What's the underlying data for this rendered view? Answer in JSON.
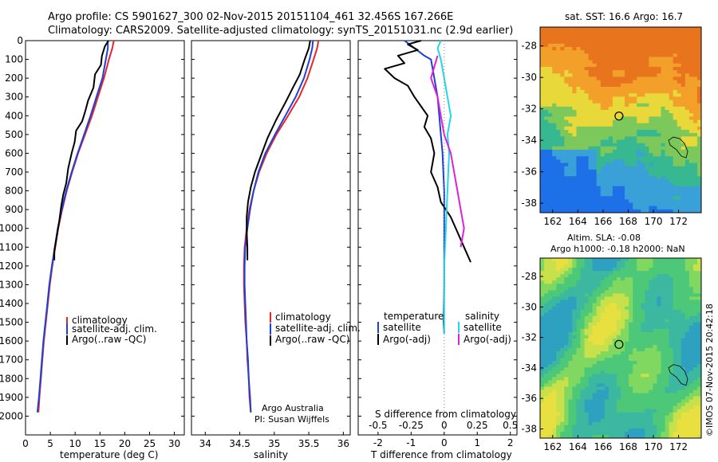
{
  "header": {
    "line1": "Argo profile: CS 5901627_300 02-Nov-2015 20151104_461 32.456S 167.266E",
    "line2": "Climatology: CARS2009. Satellite-adjusted climatology: synTS_20151031.nc (2.9d earlier)"
  },
  "colors": {
    "climatology": "#e8262a",
    "satellite": "#1e3fd8",
    "argo": "#000000",
    "sat_salinity": "#20d8e8",
    "argo_adj_salinity": "#e020d8",
    "zero_line": "#888888"
  },
  "chart_data": [
    {
      "id": "temperature",
      "type": "line",
      "xlabel": "temperature (deg C)",
      "ylabel": "",
      "xlim": [
        0,
        32
      ],
      "ylim": [
        2100,
        0
      ],
      "xticks": [
        0,
        5,
        10,
        15,
        20,
        25,
        30
      ],
      "yticks": [
        0,
        100,
        200,
        300,
        400,
        500,
        600,
        700,
        800,
        900,
        1000,
        1100,
        1200,
        1300,
        1400,
        1500,
        1600,
        1700,
        1800,
        1900,
        2000
      ],
      "legend": [
        "climatology",
        "satellite-adj. clim.",
        "Argo(..raw -QC)"
      ],
      "series": [
        {
          "name": "climatology",
          "color_key": "climatology",
          "points": [
            [
              17.8,
              0
            ],
            [
              17.5,
              40
            ],
            [
              16.8,
              100
            ],
            [
              15.8,
              200
            ],
            [
              14.6,
              300
            ],
            [
              13.4,
              400
            ],
            [
              12.0,
              500
            ],
            [
              10.6,
              600
            ],
            [
              9.4,
              700
            ],
            [
              8.3,
              800
            ],
            [
              7.4,
              900
            ],
            [
              6.6,
              1000
            ],
            [
              6.0,
              1100
            ],
            [
              5.4,
              1200
            ],
            [
              4.9,
              1300
            ],
            [
              4.5,
              1400
            ],
            [
              4.1,
              1500
            ],
            [
              3.7,
              1600
            ],
            [
              3.4,
              1700
            ],
            [
              3.1,
              1800
            ],
            [
              2.8,
              1900
            ],
            [
              2.6,
              1980
            ]
          ]
        },
        {
          "name": "satellite-adj. clim.",
          "color_key": "satellite",
          "points": [
            [
              16.6,
              0
            ],
            [
              16.6,
              40
            ],
            [
              16.2,
              100
            ],
            [
              15.5,
              200
            ],
            [
              14.3,
              300
            ],
            [
              13.1,
              400
            ],
            [
              11.8,
              500
            ],
            [
              10.5,
              600
            ],
            [
              9.3,
              700
            ],
            [
              8.2,
              800
            ],
            [
              7.3,
              900
            ],
            [
              6.5,
              1000
            ],
            [
              5.9,
              1100
            ],
            [
              5.3,
              1200
            ],
            [
              4.8,
              1300
            ],
            [
              4.4,
              1400
            ],
            [
              4.0,
              1500
            ],
            [
              3.6,
              1600
            ],
            [
              3.3,
              1700
            ],
            [
              3.0,
              1800
            ],
            [
              2.7,
              1900
            ],
            [
              2.4,
              1980
            ]
          ]
        },
        {
          "name": "Argo(..raw -QC)",
          "color_key": "argo",
          "points": [
            [
              16.7,
              0
            ],
            [
              16.0,
              30
            ],
            [
              15.4,
              80
            ],
            [
              15.2,
              130
            ],
            [
              14.0,
              180
            ],
            [
              13.7,
              250
            ],
            [
              12.6,
              320
            ],
            [
              12.0,
              380
            ],
            [
              11.4,
              430
            ],
            [
              10.2,
              480
            ],
            [
              9.9,
              540
            ],
            [
              9.3,
              600
            ],
            [
              8.6,
              680
            ],
            [
              8.2,
              760
            ],
            [
              7.6,
              820
            ],
            [
              7.2,
              880
            ],
            [
              6.8,
              960
            ],
            [
              6.3,
              1040
            ],
            [
              5.8,
              1120
            ],
            [
              5.8,
              1170
            ]
          ]
        }
      ]
    },
    {
      "id": "salinity",
      "type": "line",
      "xlabel": "salinity",
      "ylabel": "",
      "xlim": [
        33.8,
        36.1
      ],
      "ylim": [
        2100,
        0
      ],
      "xticks": [
        34,
        34.5,
        35,
        35.5,
        36
      ],
      "legend": [
        "climatology",
        "satellite-adj. clim.",
        "Argo(..raw -QC)"
      ],
      "annotation": [
        "Argo Australia",
        "PI: Susan Wijffels"
      ],
      "series": [
        {
          "name": "climatology",
          "color_key": "climatology",
          "points": [
            [
              35.64,
              0
            ],
            [
              35.62,
              40
            ],
            [
              35.57,
              100
            ],
            [
              35.48,
              200
            ],
            [
              35.36,
              300
            ],
            [
              35.2,
              400
            ],
            [
              35.03,
              500
            ],
            [
              34.89,
              600
            ],
            [
              34.78,
              700
            ],
            [
              34.7,
              800
            ],
            [
              34.64,
              900
            ],
            [
              34.6,
              1000
            ],
            [
              34.57,
              1100
            ],
            [
              34.56,
              1200
            ],
            [
              34.56,
              1300
            ],
            [
              34.57,
              1400
            ],
            [
              34.58,
              1500
            ],
            [
              34.6,
              1600
            ],
            [
              34.61,
              1700
            ],
            [
              34.63,
              1800
            ],
            [
              34.64,
              1900
            ],
            [
              34.66,
              1980
            ]
          ]
        },
        {
          "name": "satellite-adj. clim.",
          "color_key": "satellite",
          "points": [
            [
              35.56,
              0
            ],
            [
              35.55,
              40
            ],
            [
              35.51,
              100
            ],
            [
              35.43,
              200
            ],
            [
              35.31,
              300
            ],
            [
              35.16,
              400
            ],
            [
              35.01,
              500
            ],
            [
              34.87,
              600
            ],
            [
              34.77,
              700
            ],
            [
              34.7,
              800
            ],
            [
              34.65,
              900
            ],
            [
              34.61,
              1000
            ],
            [
              34.58,
              1100
            ],
            [
              34.57,
              1200
            ],
            [
              34.57,
              1300
            ],
            [
              34.58,
              1400
            ],
            [
              34.59,
              1500
            ],
            [
              34.6,
              1600
            ],
            [
              34.62,
              1700
            ],
            [
              34.63,
              1800
            ],
            [
              34.65,
              1900
            ],
            [
              34.66,
              1980
            ]
          ]
        },
        {
          "name": "Argo(..raw -QC)",
          "color_key": "argo",
          "points": [
            [
              35.52,
              0
            ],
            [
              35.5,
              40
            ],
            [
              35.44,
              100
            ],
            [
              35.37,
              180
            ],
            [
              35.27,
              250
            ],
            [
              35.16,
              330
            ],
            [
              35.03,
              420
            ],
            [
              34.9,
              520
            ],
            [
              34.8,
              620
            ],
            [
              34.72,
              700
            ],
            [
              34.66,
              780
            ],
            [
              34.62,
              860
            ],
            [
              34.6,
              940
            ],
            [
              34.6,
              1020
            ],
            [
              34.61,
              1100
            ],
            [
              34.61,
              1170
            ]
          ]
        }
      ]
    },
    {
      "id": "differences",
      "type": "line",
      "xlabel": "T difference from climatology",
      "xlabel_top": "S difference from climatology",
      "xlim": [
        -2.6,
        2.2
      ],
      "ylim": [
        2100,
        0
      ],
      "xticks_T": [
        -2,
        -1,
        0,
        1,
        2
      ],
      "xticks_S": [
        "-0.5",
        "-0.25",
        "0",
        "0.25",
        "0.5"
      ],
      "legend_temperature": [
        "temperature",
        "satellite",
        "Argo(-adj)"
      ],
      "legend_salinity": [
        "salinity",
        "satellite",
        "Argo(-adj)"
      ],
      "series": [
        {
          "name": "temperature satellite",
          "color_key": "satellite",
          "points": [
            [
              -1.2,
              0
            ],
            [
              -0.9,
              40
            ],
            [
              -0.6,
              80
            ],
            [
              -0.4,
              100
            ],
            [
              -0.3,
              200
            ],
            [
              -0.2,
              300
            ],
            [
              -0.15,
              400
            ],
            [
              -0.1,
              500
            ],
            [
              -0.05,
              600
            ],
            [
              0.0,
              800
            ],
            [
              0.0,
              1000
            ],
            [
              0.0,
              1300
            ],
            [
              -0.02,
              1500
            ],
            [
              0.0,
              1560
            ]
          ]
        },
        {
          "name": "temperature Argo(-adj)",
          "color_key": "argo",
          "points": [
            [
              -0.7,
              0
            ],
            [
              -1.1,
              20
            ],
            [
              -0.8,
              50
            ],
            [
              -1.4,
              80
            ],
            [
              -1.2,
              120
            ],
            [
              -1.8,
              150
            ],
            [
              -1.5,
              200
            ],
            [
              -1.1,
              240
            ],
            [
              -0.9,
              300
            ],
            [
              -0.7,
              350
            ],
            [
              -0.5,
              400
            ],
            [
              -0.6,
              460
            ],
            [
              -0.4,
              520
            ],
            [
              -0.3,
              600
            ],
            [
              -0.4,
              700
            ],
            [
              -0.2,
              780
            ],
            [
              -0.1,
              860
            ],
            [
              0.2,
              940
            ],
            [
              0.4,
              1020
            ],
            [
              0.6,
              1100
            ],
            [
              0.8,
              1180
            ]
          ]
        },
        {
          "name": "salinity satellite",
          "color_key": "sat_salinity",
          "points": [
            [
              -0.1,
              0
            ],
            [
              -0.2,
              40
            ],
            [
              -0.1,
              100
            ],
            [
              0.0,
              200
            ],
            [
              0.1,
              300
            ],
            [
              0.2,
              400
            ],
            [
              0.1,
              500
            ],
            [
              0.15,
              600
            ],
            [
              0.1,
              800
            ],
            [
              0.05,
              1000
            ],
            [
              0.0,
              1200
            ],
            [
              0.0,
              1560
            ]
          ]
        },
        {
          "name": "salinity Argo(-adj)",
          "color_key": "argo_adj_salinity",
          "points": [
            [
              -0.2,
              80
            ],
            [
              -0.4,
              200
            ],
            [
              -0.2,
              300
            ],
            [
              -0.1,
              400
            ],
            [
              0.0,
              500
            ],
            [
              0.2,
              600
            ],
            [
              0.3,
              700
            ],
            [
              0.4,
              800
            ],
            [
              0.5,
              900
            ],
            [
              0.6,
              1000
            ],
            [
              0.5,
              1100
            ]
          ]
        }
      ]
    },
    {
      "id": "sst-map",
      "type": "heatmap",
      "title": "sat. SST: 16.6  Argo: 16.7",
      "xlim": [
        161,
        173.8
      ],
      "ylim": [
        -38.6,
        -26.8
      ],
      "xticks": [
        162,
        164,
        166,
        168,
        170,
        172
      ],
      "yticks": [
        -28,
        -30,
        -32,
        -34,
        -36,
        -38
      ],
      "float_position": [
        167.266,
        -32.456
      ]
    },
    {
      "id": "sla-map",
      "type": "heatmap",
      "title_line1": "Altim. SLA: -0.08",
      "title_line2": "Argo h1000: -0.18 h2000: NaN",
      "xlim": [
        161,
        173.8
      ],
      "ylim": [
        -38.6,
        -26.8
      ],
      "xticks": [
        162,
        164,
        166,
        168,
        170,
        172
      ],
      "yticks": [
        -28,
        -30,
        -32,
        -34,
        -36,
        -38
      ],
      "float_position": [
        167.266,
        -32.456
      ]
    }
  ],
  "footer": {
    "credit": "©IMOS 07-Nov-2015 20:42:18"
  }
}
